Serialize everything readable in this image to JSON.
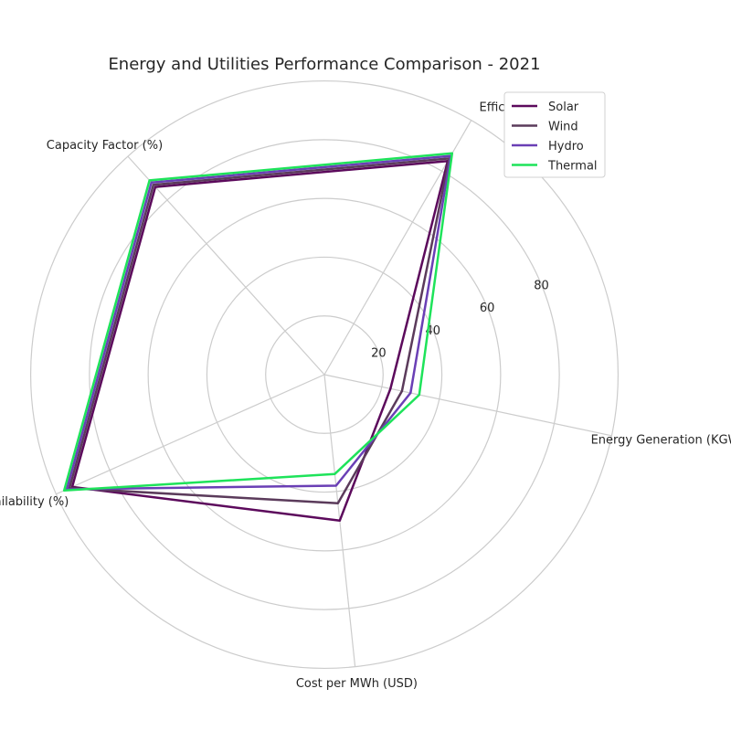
{
  "chart_data": {
    "type": "radar",
    "title": "Energy and Utilities Performance Comparison - 2021",
    "categories": [
      "Energy Generation (KGWh)",
      "Efficiency (%)",
      "Capacity Factor (%)",
      "Availability (%)",
      "Cost per MWh (USD)"
    ],
    "r_ticks": [
      20,
      40,
      60,
      80
    ],
    "r_tick_labels": [
      "20",
      "40",
      "60",
      "80"
    ],
    "r_max": 98,
    "grid": true,
    "legend_position": "top-right",
    "series": [
      {
        "name": "Solar",
        "color": "#5c0a5c",
        "values": [
          23,
          84,
          86,
          94,
          50
        ]
      },
      {
        "name": "Wind",
        "color": "#5b3b5b",
        "values": [
          27,
          85,
          87,
          95,
          44
        ]
      },
      {
        "name": "Hydro",
        "color": "#6a3fb5",
        "values": [
          30,
          86,
          88,
          96,
          38
        ]
      },
      {
        "name": "Thermal",
        "color": "#1ee35a",
        "values": [
          33,
          87,
          89,
          97,
          34
        ]
      }
    ]
  }
}
